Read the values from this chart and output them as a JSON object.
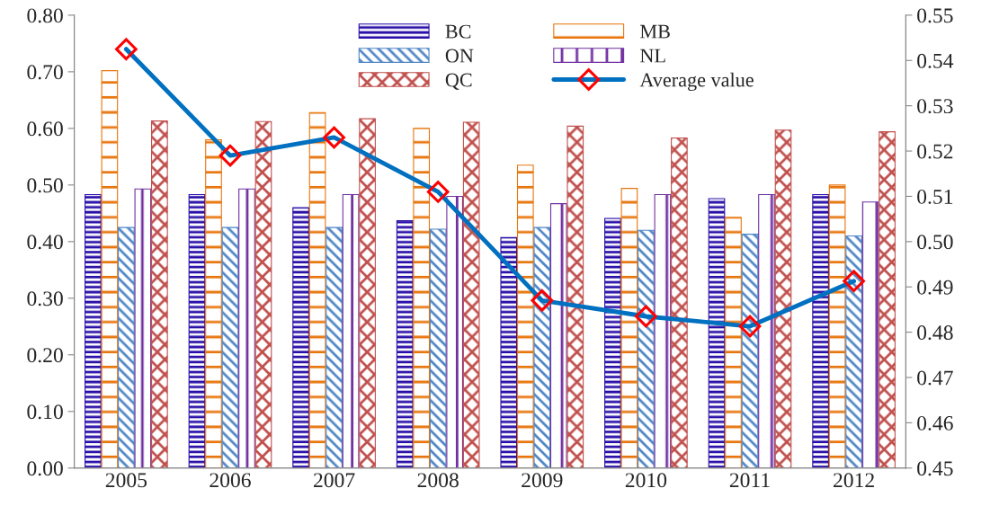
{
  "chart_data": {
    "type": "bar",
    "categories": [
      "2005",
      "2006",
      "2007",
      "2008",
      "2009",
      "2010",
      "2011",
      "2012"
    ],
    "series": [
      {
        "name": "BC",
        "color": "#2a0fa8",
        "values": [
          0.483,
          0.483,
          0.46,
          0.437,
          0.407,
          0.441,
          0.476,
          0.483
        ]
      },
      {
        "name": "MB",
        "color": "#e8760e",
        "values": [
          0.702,
          0.58,
          0.628,
          0.6,
          0.535,
          0.494,
          0.443,
          0.5
        ]
      },
      {
        "name": "ON",
        "color": "#4f86c6",
        "values": [
          0.425,
          0.425,
          0.425,
          0.422,
          0.425,
          0.42,
          0.413,
          0.41
        ]
      },
      {
        "name": "NL",
        "color": "#7030a0",
        "values": [
          0.493,
          0.493,
          0.483,
          0.48,
          0.467,
          0.483,
          0.483,
          0.47
        ]
      },
      {
        "name": "QC",
        "color": "#c0504d",
        "values": [
          0.613,
          0.612,
          0.617,
          0.611,
          0.604,
          0.583,
          0.597,
          0.594
        ]
      },
      {
        "name": "Average value",
        "type": "line",
        "axis": "y2",
        "color": "#0070c0",
        "marker": "diamond",
        "values": [
          0.5425,
          0.519,
          0.523,
          0.511,
          0.487,
          0.4835,
          0.4813,
          0.4913
        ]
      }
    ],
    "ylim": [
      0,
      0.8
    ],
    "yticks": [
      {
        "value": 0,
        "label": "0.00"
      },
      {
        "value": 0.1,
        "label": "0.10"
      },
      {
        "value": 0.2,
        "label": "0.20"
      },
      {
        "value": 0.3,
        "label": "0.30"
      },
      {
        "value": 0.4,
        "label": "0.40"
      },
      {
        "value": 0.5,
        "label": "0.50"
      },
      {
        "value": 0.6,
        "label": "0.60"
      },
      {
        "value": 0.7,
        "label": "0.70"
      },
      {
        "value": 0.8,
        "label": "0.80"
      }
    ],
    "y2lim": [
      0.45,
      0.55
    ],
    "y2ticks": [
      {
        "value": 0.45,
        "label": "0.45"
      },
      {
        "value": 0.46,
        "label": "0.46"
      },
      {
        "value": 0.47,
        "label": "0.47"
      },
      {
        "value": 0.48,
        "label": "0.48"
      },
      {
        "value": 0.49,
        "label": "0.49"
      },
      {
        "value": 0.5,
        "label": "0.50"
      },
      {
        "value": 0.51,
        "label": "0.51"
      },
      {
        "value": 0.52,
        "label": "0.52"
      },
      {
        "value": 0.53,
        "label": "0.53"
      },
      {
        "value": 0.54,
        "label": "0.54"
      },
      {
        "value": 0.55,
        "label": "0.55"
      }
    ],
    "legend": "top",
    "grid": false
  }
}
